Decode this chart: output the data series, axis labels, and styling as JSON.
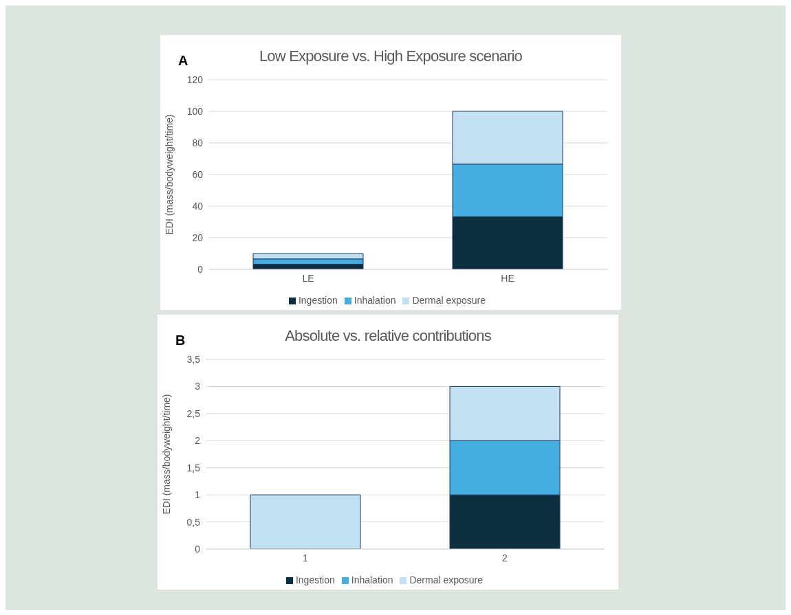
{
  "chart_data": [
    {
      "type": "bar",
      "title": "Low Exposure vs. High Exposure scenario",
      "annotations": [
        "A"
      ],
      "ylabel": "EDI (mass/bodyweight/time)",
      "categories": [
        "LE",
        "HE"
      ],
      "stacked": true,
      "series": [
        {
          "name": "Ingestion",
          "color": "#0b2e40",
          "values": [
            3.3,
            33.3
          ]
        },
        {
          "name": "Inhalation",
          "color": "#45ade0",
          "values": [
            3.3,
            33.3
          ]
        },
        {
          "name": "Dermal exposure",
          "color": "#c2e2f3",
          "values": [
            3.4,
            33.4
          ]
        }
      ],
      "ylim": [
        0,
        120
      ],
      "yticks": [
        0,
        20,
        40,
        60,
        80,
        100,
        120
      ],
      "grid": "y",
      "legend": "bottom"
    },
    {
      "type": "bar",
      "title": "Absolute vs. relative contributions",
      "annotations": [
        "B"
      ],
      "ylabel": "EDI (mass/bodyweight/time)",
      "categories": [
        "1",
        "2"
      ],
      "stacked": true,
      "series": [
        {
          "name": "Ingestion",
          "color": "#0b2e40",
          "values": [
            0,
            1
          ]
        },
        {
          "name": "Inhalation",
          "color": "#45ade0",
          "values": [
            0,
            1
          ]
        },
        {
          "name": "Dermal exposure",
          "color": "#c2e2f3",
          "values": [
            1,
            1
          ]
        }
      ],
      "ylim": [
        0,
        3.5
      ],
      "yticks": [
        0,
        {
          "value": 0.5,
          "label": "0,5"
        },
        1,
        {
          "value": 1.5,
          "label": "1,5"
        },
        2,
        {
          "value": 2.5,
          "label": "2,5"
        },
        3,
        {
          "value": 3.5,
          "label": "3,5"
        }
      ],
      "grid": "y",
      "legend": "bottom"
    }
  ]
}
